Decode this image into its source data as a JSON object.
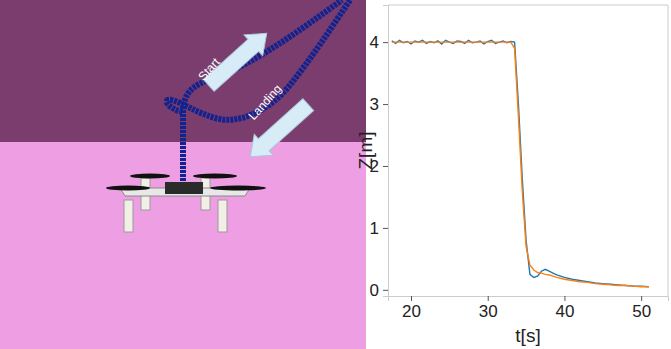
{
  "scene": {
    "start_label": "Start",
    "landing_label": "Landing"
  },
  "chart_data": {
    "type": "line",
    "x_label": "t[s]",
    "y_label": "Z[m]",
    "x": [
      17.5,
      18,
      18.5,
      19,
      19.5,
      20,
      20.5,
      21,
      21.5,
      22,
      22.5,
      23,
      23.5,
      24,
      24.5,
      25,
      25.5,
      26,
      26.5,
      27,
      27.5,
      28,
      28.5,
      29,
      29.5,
      30,
      30.5,
      31,
      31.5,
      32,
      32.5,
      33,
      33.5,
      34,
      34.5,
      35,
      35.5,
      36,
      36.5,
      37,
      37.5,
      38,
      38.5,
      39,
      40,
      41,
      42,
      43,
      44,
      45,
      46,
      47,
      48,
      49,
      50,
      51
    ],
    "series": [
      {
        "color": "#1f77b4",
        "values": [
          4.02,
          3.98,
          4.03,
          3.99,
          4.01,
          3.97,
          4.02,
          4.0,
          4.03,
          3.98,
          4.01,
          3.99,
          4.02,
          3.97,
          4.03,
          4.0,
          3.98,
          4.02,
          4.01,
          3.98,
          4.03,
          3.99,
          4.0,
          4.02,
          3.97,
          4.01,
          4.03,
          3.98,
          4.0,
          4.02,
          3.99,
          4.01,
          4.0,
          3.0,
          1.8,
          0.8,
          0.25,
          0.2,
          0.22,
          0.3,
          0.33,
          0.3,
          0.27,
          0.24,
          0.2,
          0.17,
          0.15,
          0.13,
          0.11,
          0.1,
          0.09,
          0.08,
          0.07,
          0.06,
          0.06,
          0.05
        ]
      },
      {
        "color": "#ff7f0e",
        "values": [
          4.0,
          4.0,
          4.0,
          4.0,
          4.0,
          4.0,
          4.0,
          4.0,
          4.0,
          4.0,
          4.0,
          4.0,
          4.0,
          4.0,
          4.0,
          4.0,
          4.0,
          4.0,
          4.0,
          4.0,
          4.0,
          4.0,
          4.0,
          4.0,
          4.0,
          4.0,
          4.0,
          4.0,
          4.0,
          4.0,
          4.0,
          4.0,
          3.9,
          2.8,
          1.6,
          0.7,
          0.4,
          0.32,
          0.28,
          0.27,
          0.25,
          0.24,
          0.22,
          0.2,
          0.17,
          0.15,
          0.13,
          0.12,
          0.1,
          0.09,
          0.08,
          0.07,
          0.07,
          0.06,
          0.05,
          0.05
        ]
      }
    ],
    "xlim": [
      17,
      53.5
    ],
    "ylim": [
      -0.1,
      4.6
    ],
    "xticks": [
      20,
      30,
      40,
      50
    ],
    "yticks": [
      0,
      1,
      2,
      3,
      4
    ],
    "grid": false
  }
}
